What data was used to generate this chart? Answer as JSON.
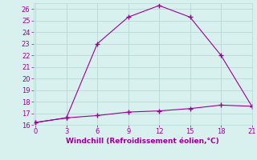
{
  "x": [
    0,
    3,
    6,
    9,
    12,
    15,
    18,
    21
  ],
  "y_upper": [
    16.2,
    16.6,
    23.0,
    25.3,
    26.3,
    25.3,
    22.0,
    17.6
  ],
  "y_lower": [
    16.2,
    16.6,
    16.8,
    17.1,
    17.2,
    17.4,
    17.7,
    17.6
  ],
  "line_color": "#990099",
  "bg_color": "#d8f0ee",
  "grid_color": "#b8d8d4",
  "xlabel": "Windchill (Refroidissement éolien,°C)",
  "xlim": [
    -0.2,
    21
  ],
  "ylim": [
    16,
    26.5
  ],
  "xticks": [
    0,
    3,
    6,
    9,
    12,
    15,
    18,
    21
  ],
  "yticks": [
    16,
    17,
    18,
    19,
    20,
    21,
    22,
    23,
    24,
    25,
    26
  ],
  "xlabel_color": "#990099",
  "tick_color": "#990099",
  "marker": "+"
}
